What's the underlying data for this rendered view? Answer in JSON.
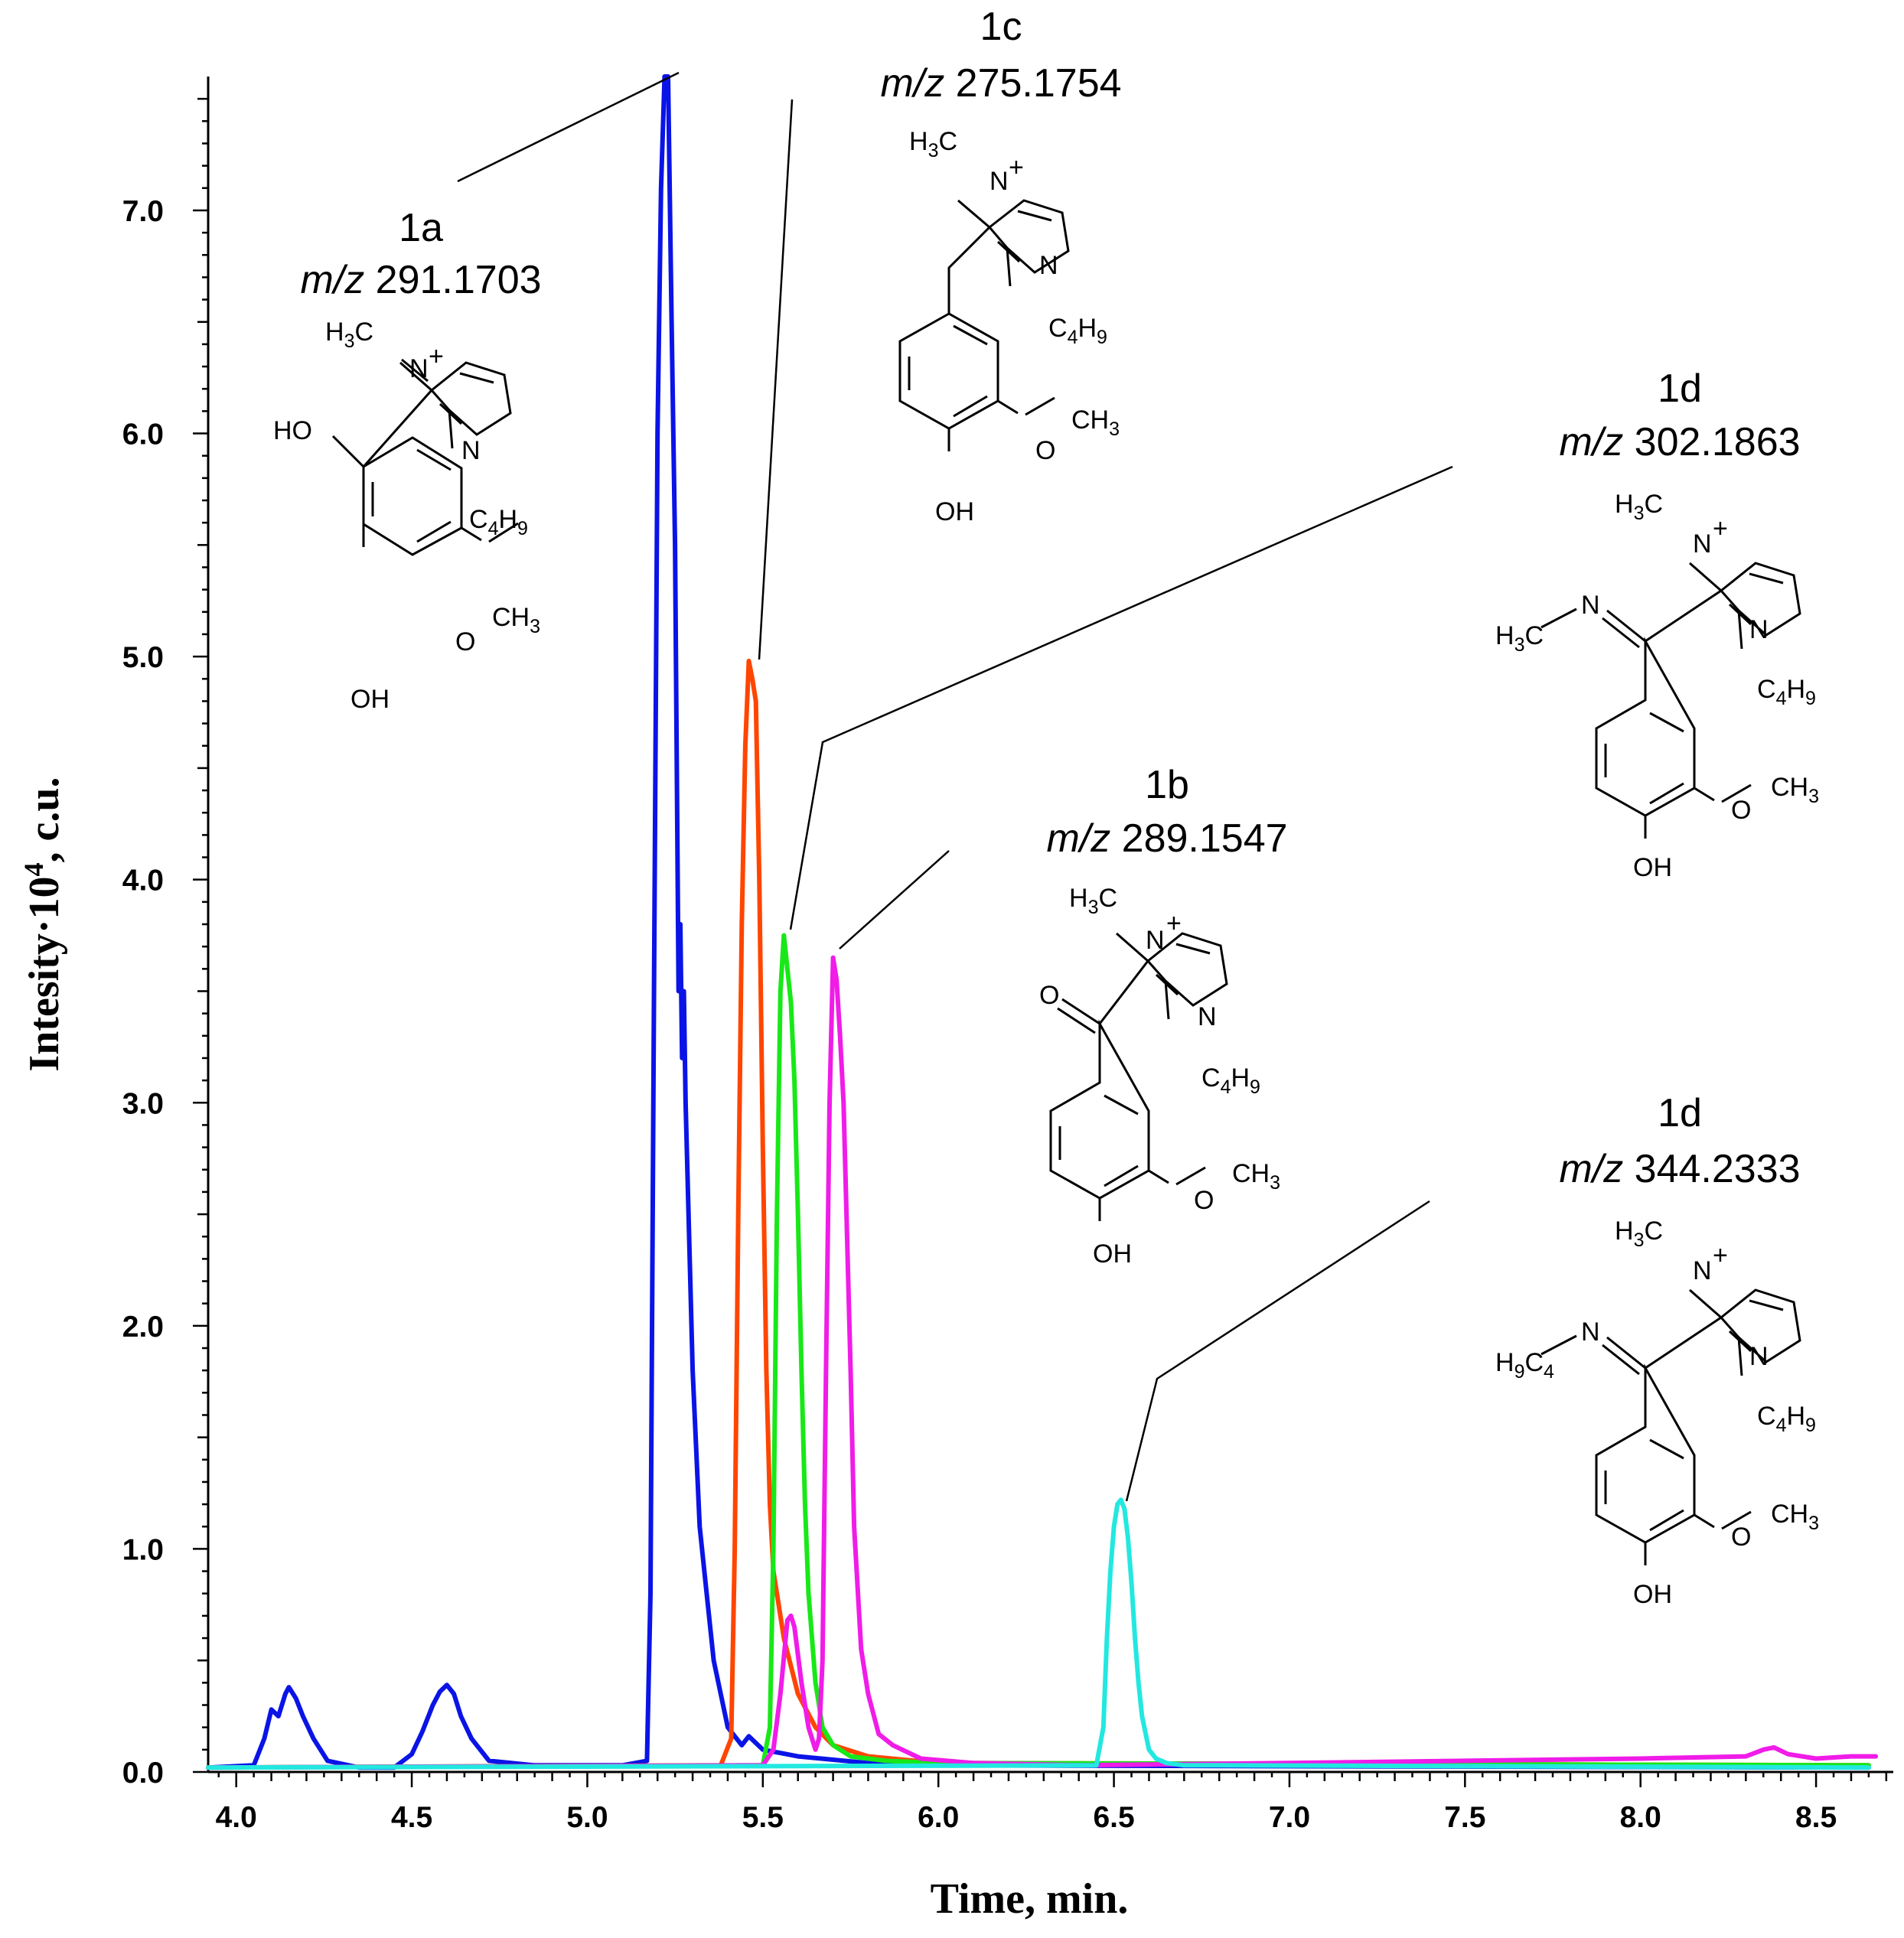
{
  "chart_data": {
    "type": "line",
    "xlabel": "Time, min.",
    "ylabel": "Intesity·10⁴, c.u.",
    "xlim": [
      3.92,
      8.72
    ],
    "ylim": [
      0.0,
      7.6
    ],
    "x_ticks": [
      "4.0",
      "4.5",
      "5.0",
      "5.5",
      "6.0",
      "6.5",
      "7.0",
      "7.5",
      "8.0",
      "8.5"
    ],
    "y_ticks": [
      "0.0",
      "1.0",
      "2.0",
      "3.0",
      "4.0",
      "5.0",
      "6.0",
      "7.0"
    ],
    "series": [
      {
        "color": "#0a14e6",
        "x": [
          3.92,
          4.05,
          4.08,
          4.1,
          4.12,
          4.14,
          4.15,
          4.17,
          4.19,
          4.22,
          4.26,
          4.35,
          4.45,
          4.5,
          4.53,
          4.56,
          4.58,
          4.6,
          4.62,
          4.64,
          4.67,
          4.72,
          4.85,
          5.1,
          5.17,
          5.18,
          5.19,
          5.2,
          5.21,
          5.22,
          5.23,
          5.24,
          5.25,
          5.26,
          5.265,
          5.27,
          5.275,
          5.28,
          5.3,
          5.32,
          5.34,
          5.36,
          5.4,
          5.44,
          5.46,
          5.5,
          5.6,
          5.8,
          6.0,
          8.65
        ],
        "y": [
          0.02,
          0.03,
          0.15,
          0.28,
          0.25,
          0.35,
          0.38,
          0.33,
          0.25,
          0.15,
          0.05,
          0.02,
          0.02,
          0.08,
          0.18,
          0.3,
          0.36,
          0.39,
          0.35,
          0.25,
          0.15,
          0.05,
          0.03,
          0.03,
          0.05,
          0.8,
          3.5,
          6.0,
          7.1,
          7.6,
          7.6,
          6.5,
          5.5,
          3.5,
          3.8,
          3.2,
          3.5,
          3.0,
          1.8,
          1.1,
          0.8,
          0.5,
          0.2,
          0.12,
          0.16,
          0.1,
          0.07,
          0.04,
          0.03,
          0.02
        ]
      },
      {
        "color": "#ff4500",
        "x": [
          3.92,
          5.38,
          5.41,
          5.42,
          5.43,
          5.44,
          5.45,
          5.46,
          5.47,
          5.48,
          5.49,
          5.5,
          5.51,
          5.52,
          5.53,
          5.54,
          5.56,
          5.6,
          5.65,
          5.7,
          5.8,
          6.0,
          8.65
        ],
        "y": [
          0.02,
          0.03,
          0.15,
          1.0,
          2.5,
          3.8,
          4.6,
          4.98,
          4.9,
          4.8,
          4.0,
          2.8,
          1.8,
          1.2,
          0.9,
          0.8,
          0.6,
          0.35,
          0.2,
          0.12,
          0.07,
          0.04,
          0.03
        ]
      },
      {
        "color": "#18e818",
        "x": [
          3.92,
          5.5,
          5.52,
          5.53,
          5.54,
          5.55,
          5.56,
          5.57,
          5.58,
          5.59,
          5.6,
          5.61,
          5.62,
          5.63,
          5.65,
          5.67,
          5.7,
          5.75,
          5.85,
          6.0,
          8.65
        ],
        "y": [
          0.02,
          0.03,
          0.2,
          1.0,
          2.5,
          3.5,
          3.75,
          3.6,
          3.45,
          3.1,
          2.5,
          1.8,
          1.2,
          0.8,
          0.4,
          0.2,
          0.12,
          0.07,
          0.05,
          0.04,
          0.03
        ]
      },
      {
        "color": "#f01ce8",
        "x": [
          3.92,
          5.5,
          5.53,
          5.55,
          5.57,
          5.58,
          5.59,
          5.61,
          5.63,
          5.65,
          5.66,
          5.67,
          5.68,
          5.69,
          5.7,
          5.71,
          5.72,
          5.73,
          5.74,
          5.75,
          5.76,
          5.78,
          5.8,
          5.83,
          5.87,
          5.95,
          6.1,
          6.4,
          7.0,
          7.5,
          8.0,
          8.3,
          8.35,
          8.38,
          8.42,
          8.5,
          8.6,
          8.67
        ],
        "y": [
          0.02,
          0.03,
          0.1,
          0.35,
          0.68,
          0.7,
          0.65,
          0.4,
          0.2,
          0.1,
          0.15,
          0.5,
          1.8,
          3.0,
          3.65,
          3.55,
          3.3,
          3.0,
          2.4,
          1.8,
          1.1,
          0.55,
          0.35,
          0.17,
          0.12,
          0.06,
          0.04,
          0.03,
          0.04,
          0.05,
          0.06,
          0.07,
          0.1,
          0.11,
          0.08,
          0.06,
          0.07,
          0.07
        ]
      },
      {
        "color": "#22e8e0",
        "x": [
          3.92,
          6.45,
          6.47,
          6.48,
          6.49,
          6.5,
          6.51,
          6.52,
          6.53,
          6.54,
          6.55,
          6.56,
          6.57,
          6.58,
          6.6,
          6.62,
          6.65,
          6.7,
          6.8,
          8.65
        ],
        "y": [
          0.02,
          0.03,
          0.2,
          0.6,
          0.9,
          1.1,
          1.2,
          1.22,
          1.18,
          1.05,
          0.85,
          0.6,
          0.4,
          0.25,
          0.1,
          0.06,
          0.04,
          0.03,
          0.03,
          0.02
        ]
      }
    ]
  },
  "annotations": [
    {
      "id": "1a",
      "label": "1a",
      "mz_prefix": "m/z",
      "mz_value": "291.1703"
    },
    {
      "id": "1c",
      "label": "1c",
      "mz_prefix": "m/z",
      "mz_value": "275.1754"
    },
    {
      "id": "1d1",
      "label": "1d",
      "mz_prefix": "m/z",
      "mz_value": "302.1863"
    },
    {
      "id": "1b",
      "label": "1b",
      "mz_prefix": "m/z",
      "mz_value": "289.1547"
    },
    {
      "id": "1d2",
      "label": "1d",
      "mz_prefix": "m/z",
      "mz_value": "344.2333"
    }
  ],
  "structures": {
    "s1a": {
      "methyl": "H3C",
      "n_plus": "N",
      "charge": "+",
      "n2": "N",
      "butyl": "C4H9",
      "substituent": "HO",
      "methoxy_o": "O",
      "methoxy_ch3": "CH3",
      "hydroxy": "OH"
    },
    "s1c": {
      "methyl": "H3C",
      "n_plus": "N",
      "charge": "+",
      "n2": "N",
      "butyl": "C4H9",
      "methoxy_o": "O",
      "methoxy_ch3": "CH3",
      "hydroxy": "OH"
    },
    "s1d1": {
      "methyl": "H3C",
      "n_plus": "N",
      "charge": "+",
      "n2": "N",
      "butyl": "C4H9",
      "imine_n": "N",
      "imine_r": "H3C",
      "methoxy_o": "O",
      "methoxy_ch3": "CH3",
      "hydroxy": "OH"
    },
    "s1b": {
      "methyl": "H3C",
      "n_plus": "N",
      "charge": "+",
      "n2": "N",
      "butyl": "C4H9",
      "carbonyl_o": "O",
      "methoxy_o": "O",
      "methoxy_ch3": "CH3",
      "hydroxy": "OH"
    },
    "s1d2": {
      "methyl": "H3C",
      "n_plus": "N",
      "charge": "+",
      "n2": "N",
      "butyl": "C4H9",
      "imine_n": "N",
      "imine_r": "H9C4",
      "methoxy_o": "O",
      "methoxy_ch3": "CH3",
      "hydroxy": "OH"
    }
  }
}
